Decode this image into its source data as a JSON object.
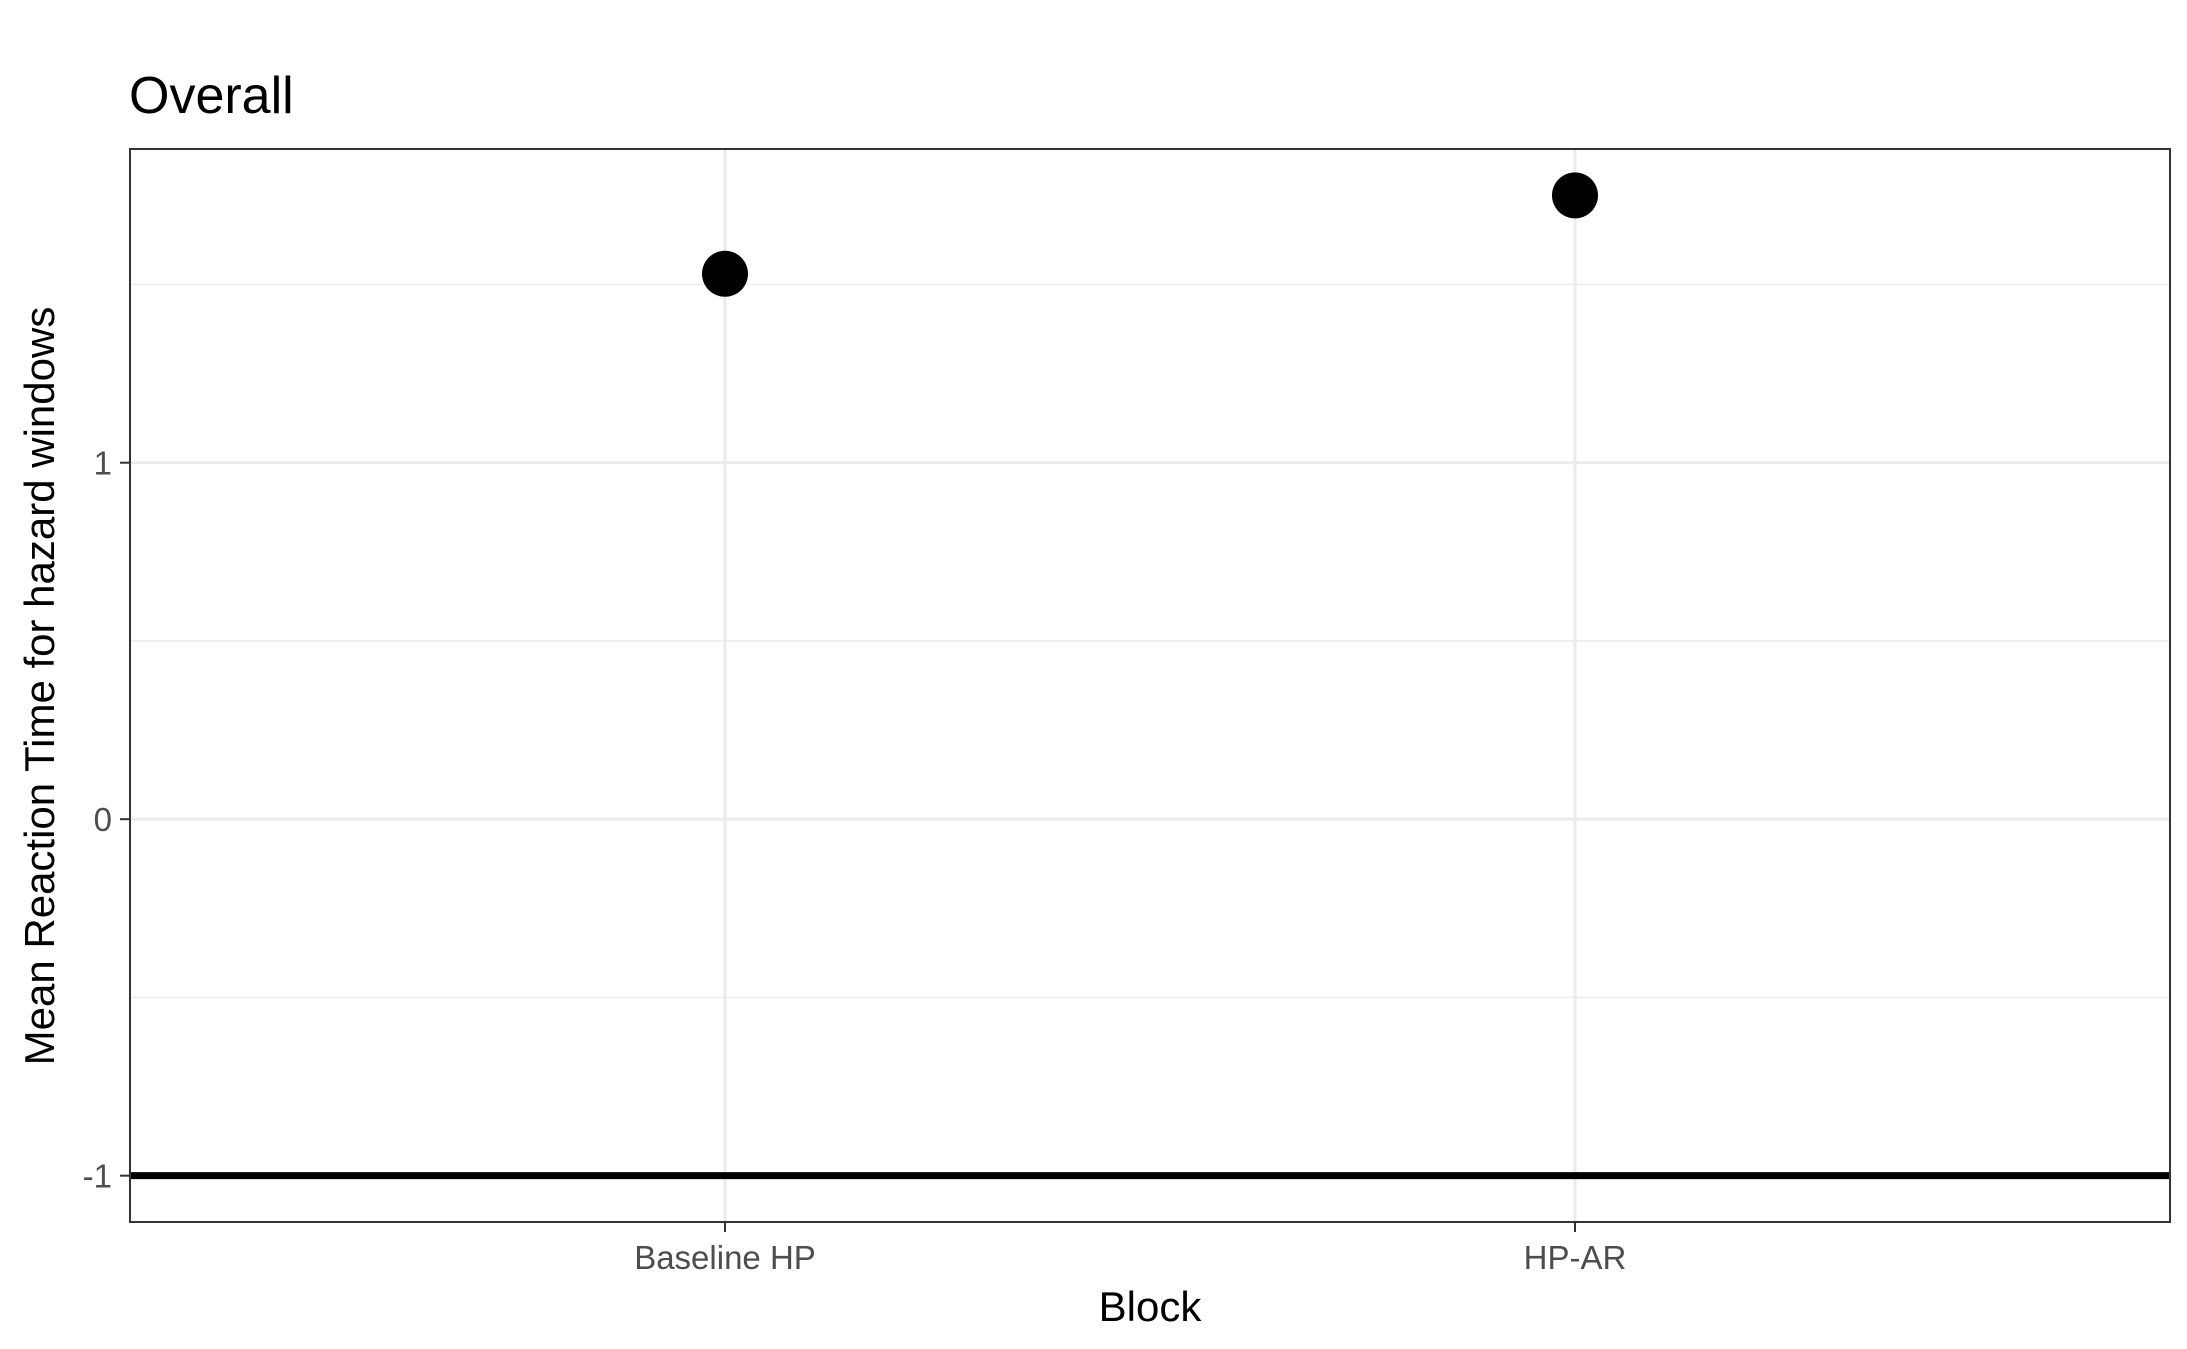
{
  "chart_data": {
    "type": "scatter",
    "title": "Overall",
    "xlabel": "Block",
    "ylabel": "Mean Reaction Time for hazard windows",
    "categories": [
      "Baseline HP",
      "HP-AR"
    ],
    "series": [
      {
        "values": [
          1.53,
          1.75
        ]
      }
    ],
    "ylim": [
      -1.13,
      1.88
    ],
    "yticks": [
      {
        "value": -1,
        "label": "-1"
      },
      {
        "value": 0,
        "label": "0"
      },
      {
        "value": 1,
        "label": "1"
      }
    ],
    "minor_yticks": [
      -0.5,
      0.5,
      1.5
    ],
    "reference_line": {
      "y": -1,
      "color": "#000000"
    },
    "grid": true,
    "colors": {
      "point": "#000000",
      "grid": "#ebebeb",
      "panel_border": "#333333"
    }
  }
}
